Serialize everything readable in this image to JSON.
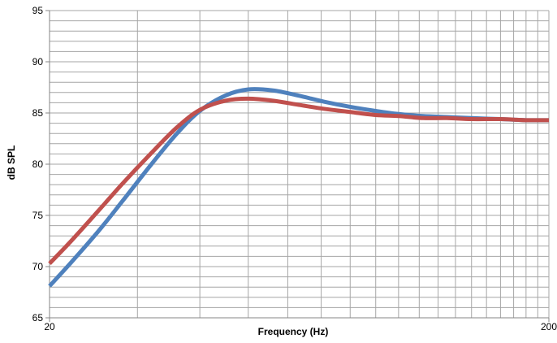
{
  "chart_data": {
    "type": "line",
    "title": "",
    "xlabel": "Frequency (Hz)",
    "ylabel": "dB SPL",
    "xscale": "log",
    "xlim": [
      20,
      200
    ],
    "ylim": [
      65,
      95
    ],
    "x_ticks": [
      20,
      200
    ],
    "x_tick_labels": [
      "20",
      "200"
    ],
    "y_ticks": [
      65,
      70,
      75,
      80,
      85,
      90,
      95
    ],
    "y_tick_labels": [
      "65",
      "70",
      "75",
      "80",
      "85",
      "90",
      "95"
    ],
    "y_minor_step": 1,
    "grid": true,
    "legend": "none",
    "colors": {
      "grid": "#a6a6a6",
      "axis": "#868686",
      "background": "#ffffff"
    },
    "series": [
      {
        "color": "#4f81bd",
        "x": [
          20,
          22,
          25,
          28,
          32,
          36,
          40,
          45,
          50,
          56,
          63,
          71,
          80,
          90,
          100,
          112,
          125,
          140,
          160,
          180,
          200
        ],
        "y": [
          68.1,
          70.3,
          73.4,
          76.4,
          80.0,
          83.0,
          85.2,
          86.7,
          87.3,
          87.2,
          86.7,
          86.1,
          85.6,
          85.2,
          84.9,
          84.7,
          84.6,
          84.5,
          84.4,
          84.3,
          84.3
        ]
      },
      {
        "color": "#c0504d",
        "x": [
          20,
          22,
          25,
          28,
          32,
          36,
          40,
          45,
          50,
          56,
          63,
          71,
          80,
          90,
          100,
          112,
          125,
          140,
          160,
          180,
          200
        ],
        "y": [
          70.3,
          72.4,
          75.4,
          78.1,
          81.1,
          83.6,
          85.3,
          86.2,
          86.4,
          86.2,
          85.8,
          85.4,
          85.1,
          84.8,
          84.7,
          84.5,
          84.5,
          84.4,
          84.4,
          84.3,
          84.3
        ]
      }
    ]
  }
}
